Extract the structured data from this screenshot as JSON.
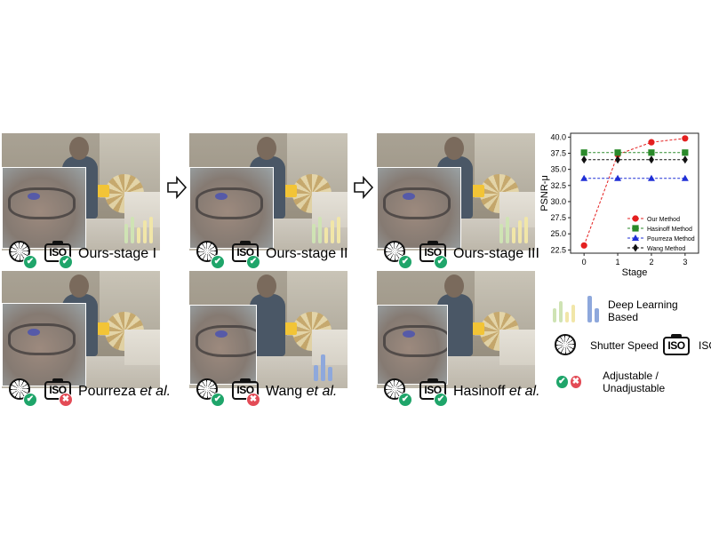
{
  "panels": [
    {
      "label": "Ours-stage I",
      "label_suffix": "",
      "shutter": "ok",
      "iso": "ok",
      "bars": "yellow"
    },
    {
      "label": "Ours-stage II",
      "label_suffix": "",
      "shutter": "ok",
      "iso": "ok",
      "bars": "yellow"
    },
    {
      "label": "Ours-stage III",
      "label_suffix": "",
      "shutter": "ok",
      "iso": "ok",
      "bars": "yellow"
    },
    {
      "label": "Pourreza ",
      "label_suffix": "et al.",
      "shutter": "ok",
      "iso": "no",
      "bars": "none"
    },
    {
      "label": "Wang ",
      "label_suffix": "et al.",
      "shutter": "ok",
      "iso": "no",
      "bars": "blue"
    },
    {
      "label": "Hasinoff ",
      "label_suffix": "et al.",
      "shutter": "ok",
      "iso": "ok",
      "bars": "none"
    }
  ],
  "iso_text": "ISO",
  "badges": {
    "ok": "✔",
    "no": "✖"
  },
  "colors": {
    "yellow_bars": "#f1e6a8",
    "green_bars": "#cfe3b4",
    "blue_bars": "#8ea8dc",
    "ok": "#1fa56a",
    "no": "#e34b56"
  },
  "legend": {
    "deep_learning": "Deep Learning Based",
    "shutter": "Shutter Speed",
    "iso": "ISO",
    "adjustable": "Adjustable / Unadjustable"
  },
  "chart_data": {
    "type": "line",
    "xlabel": "Stage",
    "ylabel": "PSNR-μ",
    "x": [
      0,
      1,
      2,
      3
    ],
    "xlim": [
      -0.4,
      3.4
    ],
    "ylim": [
      22,
      40.6
    ],
    "xticks": [
      "0",
      "1",
      "2",
      "3"
    ],
    "yticks": [
      "22.5",
      "25.0",
      "27.5",
      "30.0",
      "32.5",
      "35.0",
      "37.5",
      "40.0"
    ],
    "legend_position": "lower-right",
    "grid": false,
    "series": [
      {
        "name": "Our Method",
        "values": [
          23.2,
          37.3,
          39.2,
          39.8
        ],
        "color": "#e41f1f",
        "marker": "circle"
      },
      {
        "name": "Hasinoff Method",
        "values": [
          37.6,
          37.6,
          37.6,
          37.6
        ],
        "color": "#2a8a2a",
        "marker": "square"
      },
      {
        "name": "Pourreza Method",
        "values": [
          33.6,
          33.6,
          33.6,
          33.6
        ],
        "color": "#1f2fd6",
        "marker": "triangle"
      },
      {
        "name": "Wang Method",
        "values": [
          36.5,
          36.5,
          36.5,
          36.5
        ],
        "color": "#111111",
        "marker": "diamond"
      }
    ]
  }
}
